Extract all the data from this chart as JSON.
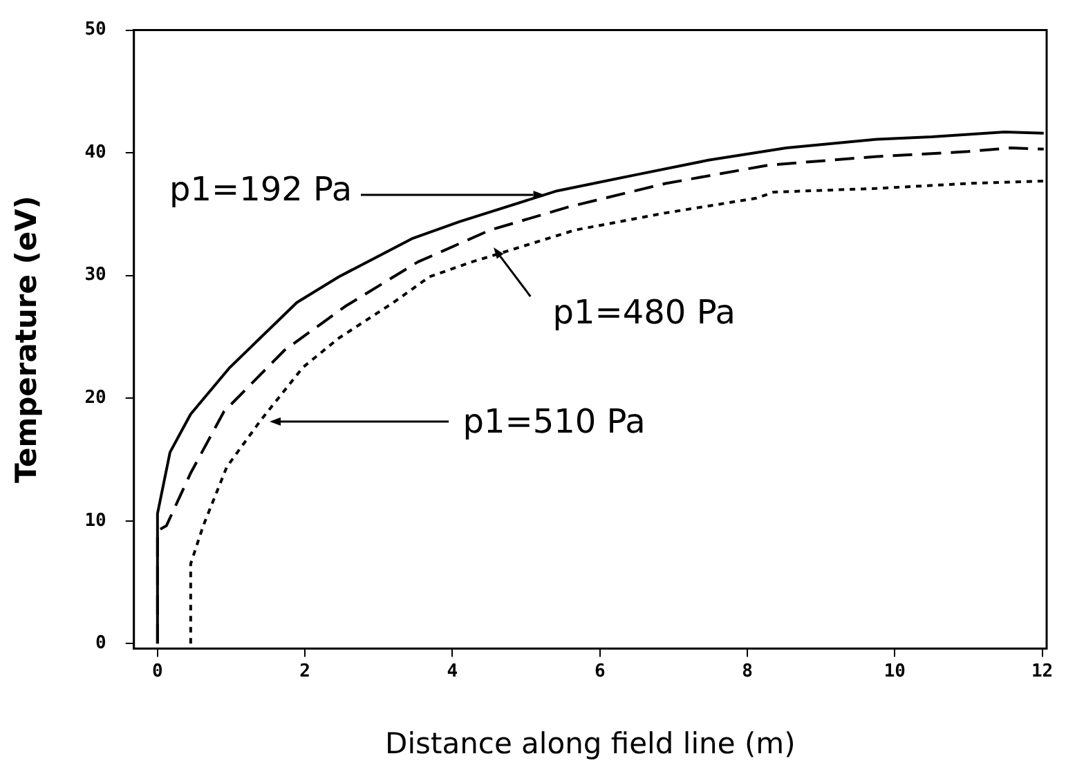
{
  "chart_data": {
    "type": "line",
    "xlabel": "Distance along field line (m)",
    "ylabel": "Temperature (eV)",
    "xlim": [
      -0.32,
      12.06
    ],
    "ylim": [
      -0.4,
      50
    ],
    "xticks": [
      0,
      2,
      4,
      6,
      8,
      10,
      12
    ],
    "yticks": [
      0,
      10,
      20,
      30,
      40,
      50
    ],
    "marker": "none",
    "legend": false,
    "series": [
      {
        "color": "#000000",
        "line_style": "solid",
        "x": [
          0,
          0,
          0.17,
          0.45,
          0.98,
          1.89,
          2.46,
          3.45,
          4.1,
          5.42,
          6.48,
          7.47,
          8.53,
          9.76,
          10.5,
          11.49,
          12.02
        ],
        "values": [
          0,
          10.6,
          15.6,
          18.7,
          22.5,
          27.8,
          29.9,
          33,
          34.4,
          36.9,
          38.2,
          39.4,
          40.4,
          41.1,
          41.3,
          41.7,
          41.6
        ]
      },
      {
        "color": "#000000",
        "line_style": "dashed",
        "x": [
          0,
          0,
          0.12,
          0.45,
          0.9,
          1.72,
          2.55,
          3.53,
          4.51,
          5.58,
          6.89,
          8.29,
          9.76,
          10.99,
          11.57,
          12.02
        ],
        "values": [
          0,
          9.2,
          9.6,
          13.9,
          18.9,
          23.9,
          27.5,
          31.1,
          33.7,
          35.6,
          37.5,
          39,
          39.7,
          40.1,
          40.4,
          40.3
        ]
      },
      {
        "color": "#000000",
        "line_style": "dotted",
        "x": [
          0.45,
          0.45,
          0.62,
          0.94,
          1.4,
          1.97,
          2.46,
          3.2,
          3.69,
          4.26,
          4.75,
          5.66,
          6.89,
          8.12,
          8.36,
          9.76,
          10.99,
          12.02
        ],
        "values": [
          0,
          6.5,
          9.6,
          14.4,
          18.2,
          22.5,
          24.9,
          27.8,
          29.9,
          31.1,
          32,
          33.7,
          35.1,
          36.3,
          36.8,
          37.1,
          37.5,
          37.7
        ]
      }
    ],
    "annotations": [
      {
        "text": "p1=192 Pa",
        "x": 5.24,
        "y": 36.6
      },
      {
        "text": "p1=480 Pa",
        "x": 4.55,
        "y": 32.3
      },
      {
        "text": "p1=510 Pa",
        "x": 1.52,
        "y": 18.1
      }
    ]
  }
}
